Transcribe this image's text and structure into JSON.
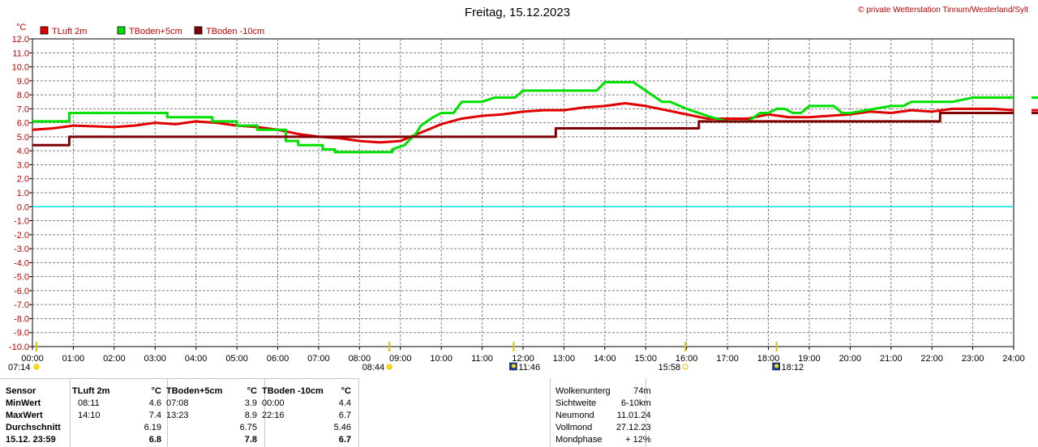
{
  "chart_data": {
    "type": "line",
    "title": "Freitag, 15.12.2023",
    "copyright": "© private Wetterstation Tinnum/Westerland/Sylt",
    "ylabel": "°C",
    "ylim": [
      -10,
      12
    ],
    "y_ticks": [
      "12.0",
      "11.0",
      "10.0",
      "9.0",
      "8.0",
      "7.0",
      "6.0",
      "5.0",
      "4.0",
      "3.0",
      "2.0",
      "1.0",
      "0.0",
      "-1.0",
      "-2.0",
      "-3.0",
      "-4.0",
      "-5.0",
      "-6.0",
      "-7.0",
      "-8.0",
      "-9.0",
      "-10.0"
    ],
    "x_ticks": [
      "00:00",
      "01:00",
      "02:00",
      "03:00",
      "04:00",
      "05:00",
      "06:00",
      "07:00",
      "08:00",
      "09:00",
      "10:00",
      "11:00",
      "12:00",
      "13:00",
      "14:00",
      "15:00",
      "16:00",
      "17:00",
      "18:00",
      "19:00",
      "20:00",
      "21:00",
      "22:00",
      "23:00",
      "24:00"
    ],
    "xlim": [
      0,
      24
    ],
    "grid": true,
    "zero_line_color": "#00e0e0",
    "series": [
      {
        "name": "TLuft 2m",
        "color": "#e00000",
        "x": [
          0,
          0.5,
          1,
          2,
          2.5,
          3,
          3.5,
          4,
          4.5,
          5,
          5.5,
          6,
          6.5,
          7,
          7.5,
          8,
          8.5,
          9,
          9.5,
          10,
          10.5,
          11,
          11.5,
          12,
          12.5,
          13,
          13.5,
          14,
          14.5,
          15,
          15.5,
          16,
          16.5,
          17,
          17.5,
          18,
          18.5,
          19,
          19.5,
          20,
          20.5,
          21,
          21.5,
          22,
          22.5,
          23,
          23.5,
          24
        ],
        "y": [
          5.5,
          5.6,
          5.8,
          5.7,
          5.8,
          6.0,
          5.9,
          6.1,
          6.0,
          5.8,
          5.7,
          5.5,
          5.2,
          5.0,
          4.9,
          4.7,
          4.6,
          4.7,
          5.3,
          5.9,
          6.3,
          6.5,
          6.6,
          6.8,
          6.9,
          6.9,
          7.1,
          7.2,
          7.4,
          7.2,
          6.9,
          6.6,
          6.3,
          6.3,
          6.3,
          6.6,
          6.4,
          6.4,
          6.5,
          6.6,
          6.8,
          6.7,
          6.9,
          6.8,
          7.0,
          7.0,
          7.0,
          6.9
        ]
      },
      {
        "name": "TBoden+5cm",
        "color": "#00e000",
        "x": [
          0,
          0.9,
          0.9,
          3.3,
          3.3,
          4.4,
          4.4,
          5.0,
          5.0,
          5.5,
          5.5,
          6.2,
          6.2,
          6.5,
          6.5,
          7.1,
          7.1,
          7.4,
          7.4,
          8.1,
          8.1,
          8.8,
          8.8,
          9.1,
          9.2,
          9.4,
          9.5,
          9.8,
          10.0,
          10.3,
          10.5,
          10.7,
          11.0,
          11.3,
          11.5,
          11.8,
          12.0,
          12.8,
          13.0,
          13.8,
          14.0,
          14.5,
          14.7,
          15.0,
          15.4,
          15.6,
          16.0,
          16.3,
          16.6,
          17.0,
          17.5,
          17.8,
          18.0,
          18.2,
          18.4,
          18.6,
          18.8,
          19.0,
          19.6,
          19.8,
          20.0,
          20.6,
          21.0,
          21.3,
          21.5,
          22.0,
          22.5,
          23.0,
          24
        ],
        "y": [
          6.1,
          6.1,
          6.7,
          6.7,
          6.4,
          6.4,
          6.1,
          6.1,
          5.8,
          5.8,
          5.5,
          5.5,
          4.7,
          4.7,
          4.4,
          4.4,
          4.1,
          4.1,
          3.9,
          3.9,
          3.9,
          3.9,
          4.1,
          4.4,
          4.7,
          5.3,
          5.8,
          6.4,
          6.7,
          6.7,
          7.5,
          7.5,
          7.5,
          7.8,
          7.8,
          7.8,
          8.3,
          8.3,
          8.3,
          8.3,
          8.9,
          8.9,
          8.9,
          8.3,
          7.5,
          7.5,
          7.0,
          6.7,
          6.4,
          6.1,
          6.1,
          6.7,
          6.7,
          7.0,
          7.0,
          6.7,
          6.7,
          7.2,
          7.2,
          6.7,
          6.7,
          7.0,
          7.2,
          7.2,
          7.5,
          7.5,
          7.5,
          7.8,
          7.8
        ]
      },
      {
        "name": "TBoden -10cm",
        "color": "#800000",
        "x": [
          0,
          0.9,
          0.9,
          12.8,
          12.8,
          16.3,
          16.3,
          22.2,
          22.2,
          24
        ],
        "y": [
          4.4,
          4.4,
          5.0,
          5.0,
          5.6,
          5.6,
          6.1,
          6.1,
          6.7,
          6.7
        ]
      }
    ],
    "events": [
      {
        "time": "07:14",
        "marker": "sunrise-arrow",
        "hour": 0.1
      },
      {
        "time": "08:44",
        "marker": "sunrise-sun",
        "hour": 8.73
      },
      {
        "time": "11:46",
        "marker": "moonrise",
        "hour": 11.77
      },
      {
        "time": "15:58",
        "marker": "sunset-sun",
        "hour": 15.97
      },
      {
        "time": "18:12",
        "marker": "moonset",
        "hour": 18.2
      }
    ]
  },
  "table": {
    "headers": [
      "Sensor",
      "TLuft 2m",
      "°C",
      "TBoden+5cm",
      "°C",
      "TBoden -10cm",
      "°C"
    ],
    "rows": [
      {
        "label": "MinWert",
        "t1": "08:11",
        "v1": "4.6",
        "t2": "07:08",
        "v2": "3.9",
        "t3": "00:00",
        "v3": "4.4"
      },
      {
        "label": "MaxWert",
        "t1": "14:10",
        "v1": "7.4",
        "t2": "13:23",
        "v2": "8.9",
        "t3": "22:16",
        "v3": "6.7"
      },
      {
        "label": "Durchschnitt",
        "t1": "",
        "v1": "6.19",
        "t2": "",
        "v2": "6.75",
        "t3": "",
        "v3": "5.46"
      },
      {
        "label": "15.12. 23:59",
        "t1": "",
        "v1": "6.8",
        "t2": "",
        "v2": "7.8",
        "t3": "",
        "v3": "6.7"
      }
    ]
  },
  "info": [
    {
      "label": "Wolkenunterg",
      "value": "74m"
    },
    {
      "label": "Sichtweite",
      "value": "6-10km"
    },
    {
      "label": "Neumond",
      "value": "11.01.24"
    },
    {
      "label": "Vollmond",
      "value": "27.12.23"
    },
    {
      "label": "Mondphase",
      "value": "+ 12%"
    }
  ]
}
